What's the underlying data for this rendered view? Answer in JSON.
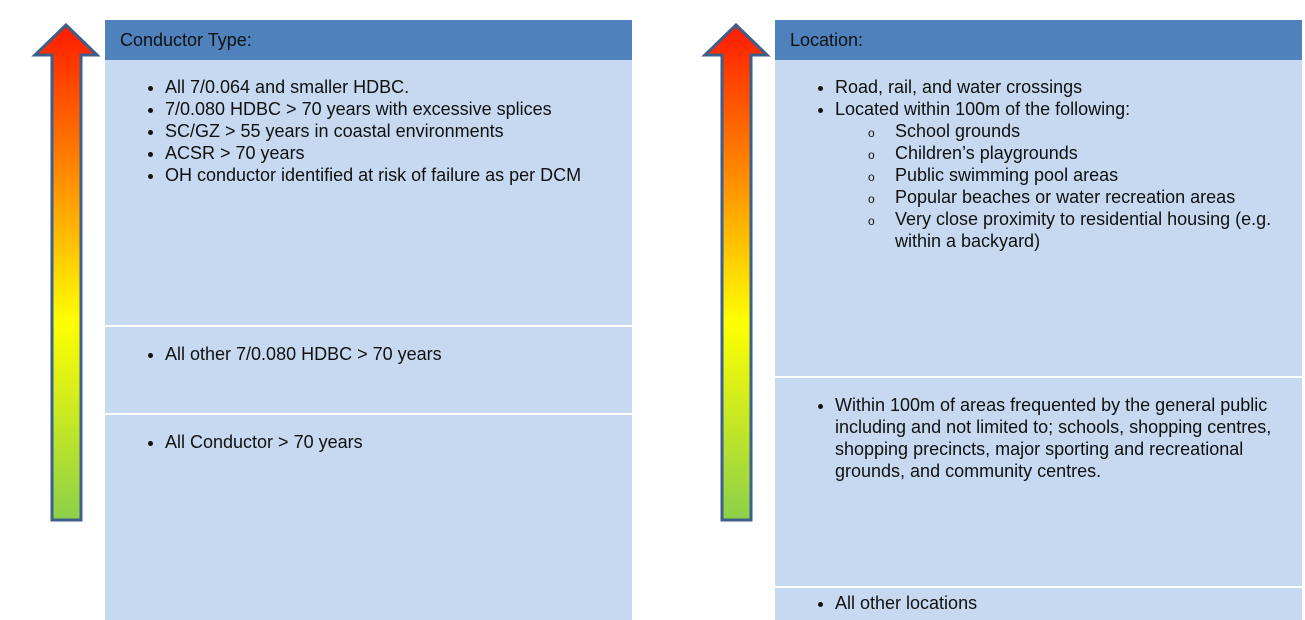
{
  "panels": [
    {
      "header": "Conductor Type:",
      "sections": [
        {
          "items": [
            {
              "text": "All 7/0.064 and smaller HDBC."
            },
            {
              "text": "7/0.080 HDBC > 70 years with excessive splices"
            },
            {
              "text": "SC/GZ > 55 years in coastal environments"
            },
            {
              "text": "ACSR > 70 years"
            },
            {
              "text": "OH conductor identified at risk of failure as per DCM"
            }
          ]
        },
        {
          "items": [
            {
              "text": "All other 7/0.080 HDBC  > 70 years"
            }
          ]
        },
        {
          "items": [
            {
              "text": "All Conductor  > 70 years"
            }
          ]
        }
      ]
    },
    {
      "header": "Location:",
      "sections": [
        {
          "items": [
            {
              "text": "Road, rail, and water crossings"
            },
            {
              "text": "Located within 100m of the following:",
              "subitems": [
                "School grounds",
                "Children’s playgrounds",
                "Public swimming pool areas",
                "Popular beaches or water recreation areas",
                "Very close proximity to residential housing (e.g. within a backyard)"
              ]
            }
          ]
        },
        {
          "items": [
            {
              "text": "Within 100m of areas frequented by the general public including and not limited to; schools, shopping centres, shopping precincts, major sporting and recreational grounds, and community centres."
            }
          ]
        },
        {
          "items": [
            {
              "text": "All other locations"
            }
          ]
        }
      ]
    }
  ]
}
